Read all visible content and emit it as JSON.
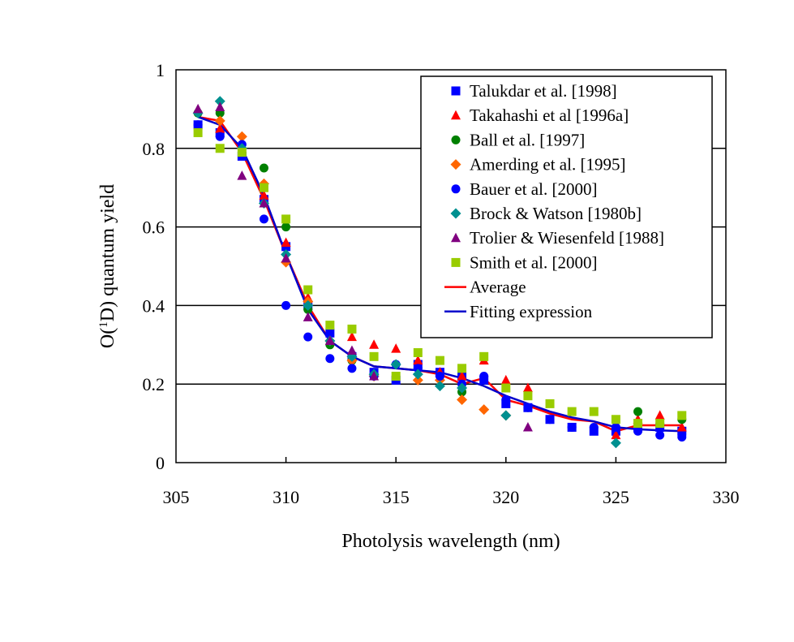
{
  "chart_data": {
    "type": "scatter",
    "xlabel": "Photolysis wavelength (nm)",
    "ylabel": {
      "pre": "O(",
      "sup": "1",
      "post": "D) quantum yield"
    },
    "xlim": [
      305,
      330
    ],
    "ylim": [
      0,
      1
    ],
    "xticks": [
      "305",
      "310",
      "315",
      "320",
      "325",
      "330"
    ],
    "yticks": [
      "0",
      "0.2",
      "0.4",
      "0.6",
      "0.8",
      "1"
    ],
    "grid": "horizontal",
    "legend_position": "top-right",
    "series": [
      {
        "name": "Talukdar et al. [1998]",
        "marker": "square",
        "color": "#0000ff",
        "points": [
          [
            306,
            0.86
          ],
          [
            307,
            0.84
          ],
          [
            308,
            0.78
          ],
          [
            309,
            0.67
          ],
          [
            310,
            0.55
          ],
          [
            311,
            0.4
          ],
          [
            312,
            0.33
          ],
          [
            313,
            0.27
          ],
          [
            314,
            0.23
          ],
          [
            315,
            0.21
          ],
          [
            316,
            0.25
          ],
          [
            317,
            0.23
          ],
          [
            318,
            0.22
          ],
          [
            319,
            0.21
          ],
          [
            320,
            0.15
          ],
          [
            321,
            0.14
          ],
          [
            322,
            0.11
          ],
          [
            323,
            0.09
          ],
          [
            324,
            0.08
          ],
          [
            325,
            0.08
          ],
          [
            326,
            0.09
          ],
          [
            327,
            0.09
          ],
          [
            328,
            0.08
          ]
        ]
      },
      {
        "name": "Takahashi et al [1996a]",
        "marker": "triangle",
        "color": "#ff0000",
        "points": [
          [
            307,
            0.85
          ],
          [
            309,
            0.68
          ],
          [
            310,
            0.56
          ],
          [
            311,
            0.42
          ],
          [
            312,
            0.31
          ],
          [
            313,
            0.32
          ],
          [
            314,
            0.3
          ],
          [
            315,
            0.29
          ],
          [
            316,
            0.26
          ],
          [
            317,
            0.23
          ],
          [
            318,
            0.22
          ],
          [
            319,
            0.26
          ],
          [
            320,
            0.21
          ],
          [
            321,
            0.19
          ],
          [
            325,
            0.07
          ],
          [
            326,
            0.11
          ],
          [
            327,
            0.12
          ],
          [
            328,
            0.09
          ]
        ]
      },
      {
        "name": "Ball et al. [1997]",
        "marker": "circle",
        "color": "#008000",
        "points": [
          [
            306,
            0.89
          ],
          [
            307,
            0.89
          ],
          [
            309,
            0.75
          ],
          [
            310,
            0.6
          ],
          [
            311,
            0.39
          ],
          [
            312,
            0.3
          ],
          [
            313,
            0.26
          ],
          [
            318,
            0.18
          ],
          [
            326,
            0.13
          ],
          [
            328,
            0.11
          ]
        ]
      },
      {
        "name": "Amerding et al. [1995]",
        "marker": "diamond",
        "color": "#ff6600",
        "points": [
          [
            307,
            0.87
          ],
          [
            308,
            0.83
          ],
          [
            309,
            0.71
          ],
          [
            310,
            0.51
          ],
          [
            311,
            0.41
          ],
          [
            312,
            0.31
          ],
          [
            313,
            0.26
          ],
          [
            314,
            0.22
          ],
          [
            316,
            0.21
          ],
          [
            317,
            0.21
          ],
          [
            318,
            0.16
          ],
          [
            319,
            0.135
          ],
          [
            320,
            0.12
          ]
        ]
      },
      {
        "name": "Bauer et al. [2000]",
        "marker": "circle",
        "color": "#0000ff",
        "points": [
          [
            306,
            0.86
          ],
          [
            307,
            0.83
          ],
          [
            308,
            0.81
          ],
          [
            309,
            0.62
          ],
          [
            310,
            0.4
          ],
          [
            311,
            0.32
          ],
          [
            312,
            0.265
          ],
          [
            313,
            0.24
          ],
          [
            314,
            0.22
          ],
          [
            315,
            0.25
          ],
          [
            316,
            0.24
          ],
          [
            317,
            0.22
          ],
          [
            318,
            0.2
          ],
          [
            319,
            0.22
          ],
          [
            320,
            0.16
          ],
          [
            321,
            0.14
          ],
          [
            322,
            0.11
          ],
          [
            323,
            0.09
          ],
          [
            324,
            0.09
          ],
          [
            325,
            0.09
          ],
          [
            326,
            0.08
          ],
          [
            327,
            0.07
          ],
          [
            328,
            0.065
          ]
        ]
      },
      {
        "name": "Brock & Watson [1980b]",
        "marker": "diamond",
        "color": "#009090",
        "points": [
          [
            306,
            0.89
          ],
          [
            307,
            0.92
          ],
          [
            308,
            0.8
          ],
          [
            309,
            0.66
          ],
          [
            310,
            0.53
          ],
          [
            311,
            0.4
          ],
          [
            312,
            0.31
          ],
          [
            313,
            0.27
          ],
          [
            314,
            0.225
          ],
          [
            315,
            0.25
          ],
          [
            316,
            0.225
          ],
          [
            317,
            0.195
          ],
          [
            318,
            0.19
          ],
          [
            320,
            0.12
          ],
          [
            325,
            0.05
          ]
        ]
      },
      {
        "name": "Trolier & Wiesenfeld [1988]",
        "marker": "triangle",
        "color": "#800080",
        "points": [
          [
            306,
            0.9
          ],
          [
            307,
            0.905
          ],
          [
            308,
            0.73
          ],
          [
            309,
            0.66
          ],
          [
            310,
            0.52
          ],
          [
            311,
            0.37
          ],
          [
            312,
            0.31
          ],
          [
            313,
            0.285
          ],
          [
            314,
            0.22
          ],
          [
            321,
            0.09
          ]
        ]
      },
      {
        "name": "Smith et al. [2000]",
        "marker": "square",
        "color": "#99cc00",
        "points": [
          [
            306,
            0.84
          ],
          [
            307,
            0.8
          ],
          [
            308,
            0.79
          ],
          [
            309,
            0.7
          ],
          [
            310,
            0.62
          ],
          [
            311,
            0.44
          ],
          [
            312,
            0.35
          ],
          [
            313,
            0.34
          ],
          [
            314,
            0.27
          ],
          [
            315,
            0.22
          ],
          [
            316,
            0.28
          ],
          [
            317,
            0.26
          ],
          [
            318,
            0.24
          ],
          [
            319,
            0.27
          ],
          [
            320,
            0.19
          ],
          [
            321,
            0.17
          ],
          [
            322,
            0.15
          ],
          [
            323,
            0.13
          ],
          [
            324,
            0.13
          ],
          [
            325,
            0.11
          ],
          [
            326,
            0.1
          ],
          [
            327,
            0.1
          ],
          [
            328,
            0.12
          ]
        ]
      },
      {
        "name": "Average",
        "marker": "line",
        "color": "#ff0000",
        "points": [
          [
            306,
            0.88
          ],
          [
            307,
            0.87
          ],
          [
            308,
            0.79
          ],
          [
            309,
            0.67
          ],
          [
            310,
            0.53
          ],
          [
            311,
            0.4
          ],
          [
            312,
            0.31
          ],
          [
            313,
            0.27
          ],
          [
            314,
            0.245
          ],
          [
            315,
            0.24
          ],
          [
            316,
            0.235
          ],
          [
            317,
            0.225
          ],
          [
            318,
            0.2
          ],
          [
            319,
            0.215
          ],
          [
            320,
            0.16
          ],
          [
            321,
            0.145
          ],
          [
            322,
            0.125
          ],
          [
            323,
            0.11
          ],
          [
            324,
            0.105
          ],
          [
            325,
            0.08
          ],
          [
            326,
            0.095
          ],
          [
            327,
            0.095
          ],
          [
            328,
            0.095
          ]
        ]
      },
      {
        "name": "Fitting expression",
        "marker": "line",
        "color": "#0000cc",
        "points": [
          [
            306,
            0.88
          ],
          [
            307,
            0.86
          ],
          [
            308,
            0.8
          ],
          [
            309,
            0.68
          ],
          [
            310,
            0.53
          ],
          [
            311,
            0.39
          ],
          [
            312,
            0.31
          ],
          [
            313,
            0.27
          ],
          [
            314,
            0.245
          ],
          [
            315,
            0.24
          ],
          [
            316,
            0.235
          ],
          [
            317,
            0.23
          ],
          [
            318,
            0.215
          ],
          [
            319,
            0.195
          ],
          [
            320,
            0.17
          ],
          [
            321,
            0.15
          ],
          [
            322,
            0.13
          ],
          [
            323,
            0.115
          ],
          [
            324,
            0.105
          ],
          [
            325,
            0.09
          ],
          [
            326,
            0.085
          ],
          [
            327,
            0.082
          ],
          [
            328,
            0.08
          ]
        ]
      }
    ]
  }
}
